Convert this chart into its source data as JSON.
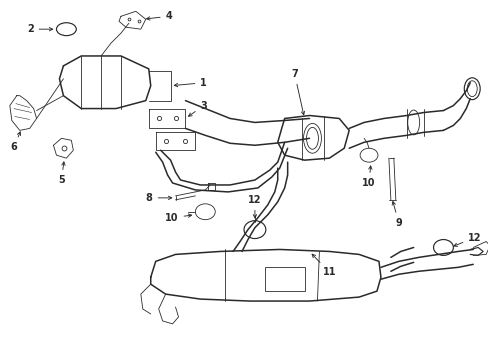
{
  "bg_color": "#ffffff",
  "line_color": "#2a2a2a",
  "fig_width": 4.9,
  "fig_height": 3.6,
  "dpi": 100,
  "label_fontsize": 7.0,
  "lw_main": 1.1,
  "lw_thin": 0.6,
  "lw_med": 0.85
}
